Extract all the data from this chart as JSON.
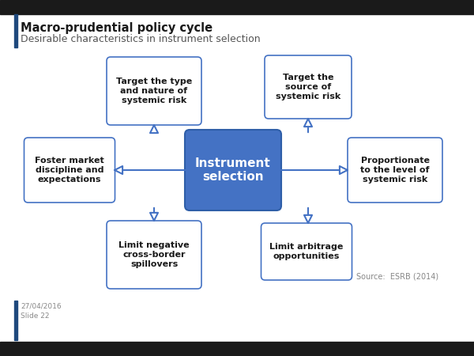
{
  "title": "Macro-prudential policy cycle",
  "subtitle": "Desirable characteristics in instrument selection",
  "date_slide": "27/04/2016\nSlide 22",
  "source": "Source:  ESRB (2014)",
  "center_text": "Instrument\nselection",
  "center_box_color": "#4472C4",
  "center_text_color": "#FFFFFF",
  "satellite_box_color": "#FFFFFF",
  "satellite_border_color": "#4472C4",
  "satellite_text_color": "#1a1a1a",
  "background_color": "#FFFFFF",
  "bar_color": "#1F497D",
  "top_bar_color": "#1a1a1a",
  "bottom_bar_color": "#1a1a1a",
  "arrow_color": "#4472C4",
  "source_color": "#888888",
  "date_color": "#888888",
  "title_color": "#1a1a1a",
  "subtitle_color": "#555555"
}
